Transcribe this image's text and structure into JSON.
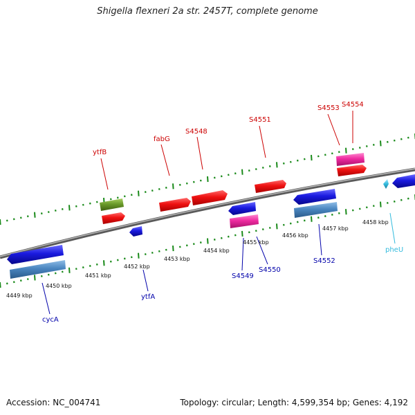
{
  "title": "Shigella flexneri 2a str. 2457T, complete genome",
  "footer": {
    "accession": "Accession: NC_004741",
    "summary": "Topology: circular; Length: 4,599,354 bp; Genes: 4,192"
  },
  "colors": {
    "backbone": "#8a8a8a",
    "tick": "#1a8a1a",
    "forward_label": "#cc0000",
    "reverse_label": "#0000aa",
    "trna_label": "#33bbdd",
    "red": "#ee1111",
    "blue": "#1a1adf",
    "steel": "#4a86c0",
    "pink": "#ee2aa0",
    "olive": "#6a9a2a",
    "cyan": "#33bbdd"
  },
  "scale": {
    "unit": "kbp",
    "labels": [
      "4449 kbp",
      "4450 kbp",
      "4451 kbp",
      "4452 kbp",
      "4453 kbp",
      "4454 kbp",
      "4455 kbp",
      "4456 kbp",
      "4457 kbp",
      "4458 kbp"
    ]
  },
  "labels": {
    "ytfB": "ytfB",
    "fabG": "fabG",
    "S4548": "S4548",
    "S4551": "S4551",
    "S4553": "S4553",
    "S4554": "S4554",
    "cycA": "cycA",
    "ytfA": "ytfA",
    "S4549": "S4549",
    "S4550": "S4550",
    "S4552": "S4552",
    "pheU": "pheU"
  }
}
